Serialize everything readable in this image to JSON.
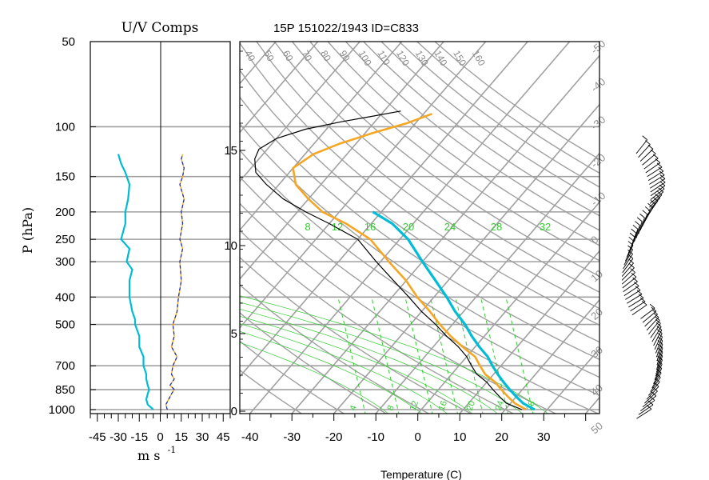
{
  "chart_data": [
    {
      "type": "line",
      "title": "U/V Comps",
      "ylabel": "P (hPa)",
      "xlabel": "m s -1",
      "xlabel_main": "m s",
      "xlabel_exp": "-1",
      "y_scale": "log",
      "ylim": [
        1000,
        50
      ],
      "xlim": [
        -50,
        50
      ],
      "x_ticks": [
        "-45",
        "-30",
        "-15",
        "0",
        "15",
        "30",
        "45"
      ],
      "p_ticks": [
        50,
        100,
        150,
        200,
        250,
        300,
        400,
        500,
        700,
        850,
        1000
      ],
      "series": [
        {
          "color": "#000000",
          "x": [
            -5,
            -9,
            -10,
            -9,
            -8,
            -9,
            -10,
            -10,
            -12,
            -12,
            -15,
            -15,
            -18,
            -18,
            -20,
            -22,
            -22,
            -20,
            -24,
            -22,
            -28,
            -25,
            -25,
            -23,
            -22,
            -25,
            -28,
            -30
          ],
          "p": [
            1000,
            960,
            920,
            880,
            850,
            820,
            780,
            750,
            700,
            650,
            600,
            550,
            500,
            480,
            450,
            400,
            350,
            320,
            300,
            270,
            250,
            220,
            200,
            180,
            160,
            145,
            135,
            125
          ]
        },
        {
          "color": "#00bcd4",
          "x": [
            -5,
            -9,
            -10,
            -9,
            -8,
            -9,
            -10,
            -10,
            -12,
            -12,
            -15,
            -15,
            -18,
            -18,
            -20,
            -22,
            -22,
            -20,
            -24,
            -22,
            -28,
            -25,
            -25,
            -23,
            -22,
            -25,
            -28,
            -30
          ],
          "p": [
            1000,
            960,
            920,
            880,
            850,
            820,
            780,
            750,
            700,
            650,
            600,
            550,
            500,
            480,
            450,
            400,
            350,
            320,
            300,
            270,
            250,
            220,
            200,
            180,
            160,
            145,
            135,
            125
          ]
        },
        {
          "color": "#f5a623",
          "x": [
            5,
            4,
            6,
            8,
            10,
            7,
            10,
            8,
            9,
            12,
            8,
            10,
            9,
            12,
            13,
            15,
            14,
            16,
            14,
            16,
            15,
            17,
            14,
            16,
            17,
            15,
            16
          ],
          "p": [
            1000,
            960,
            920,
            880,
            850,
            820,
            780,
            750,
            700,
            650,
            600,
            550,
            500,
            450,
            400,
            350,
            300,
            270,
            250,
            220,
            200,
            180,
            160,
            150,
            140,
            130,
            125
          ]
        },
        {
          "color": "#2233aa",
          "x": [
            5,
            4,
            6,
            8,
            10,
            7,
            10,
            8,
            9,
            12,
            8,
            10,
            9,
            12,
            13,
            15,
            14,
            16,
            14,
            16,
            15,
            17,
            14,
            16,
            17,
            15,
            16
          ],
          "p": [
            1000,
            960,
            920,
            880,
            850,
            820,
            780,
            750,
            700,
            650,
            600,
            550,
            500,
            450,
            400,
            350,
            300,
            270,
            250,
            220,
            200,
            180,
            160,
            150,
            140,
            130,
            125
          ]
        }
      ]
    },
    {
      "type": "line",
      "title": "15P 151022/1943 ID=C833",
      "xlabel": "Temperature (C)",
      "x_scale": "skew-T",
      "y_scale": "log",
      "ylim_p": [
        1050,
        50
      ],
      "xlim": [
        -45,
        45
      ],
      "x_ticks": [
        "-40",
        "-30",
        "-20",
        "-10",
        "0",
        "10",
        "20",
        "30"
      ],
      "height_ticks_km": [
        "0",
        "5",
        "10",
        "15"
      ],
      "grid": true,
      "isotherm_labels": [
        "-50",
        "-40",
        "-30",
        "-20",
        "-10",
        "0",
        "10",
        "20",
        "30",
        "40",
        "50"
      ],
      "adiabat_labels": [
        "40",
        "50",
        "60",
        "70",
        "80",
        "90",
        "100",
        "110",
        "120",
        "130",
        "140",
        "150",
        "160"
      ],
      "mixing_ratio_labels": [
        "8",
        "12",
        "16",
        "20",
        "24",
        "28",
        "32"
      ],
      "moist_adiabat_labels": [
        "4",
        "8",
        "12",
        "16",
        "20",
        "24",
        "28"
      ],
      "colors": {
        "temperature": "#f5a623",
        "dewpoint": "#000000",
        "parcel": "#00bcd4",
        "grid": "#a0a0a0",
        "mixing_ratio": "#33cc33"
      },
      "series": [
        {
          "color": "#f5a623",
          "T": [
            25,
            21,
            18,
            15,
            12,
            8,
            5,
            2,
            -3,
            -8,
            -13,
            -18,
            -24,
            -30,
            -38,
            -47,
            -56,
            -64,
            -70,
            -76,
            -80,
            -78,
            -74,
            -68,
            -62,
            -58
          ],
          "p": [
            1000,
            950,
            900,
            850,
            800,
            750,
            700,
            650,
            600,
            550,
            500,
            450,
            400,
            350,
            300,
            250,
            220,
            200,
            180,
            160,
            140,
            125,
            115,
            105,
            97,
            90
          ]
        },
        {
          "color": "#000000",
          "T": [
            24,
            19,
            16,
            13,
            10,
            6,
            3,
            0,
            -4,
            -9,
            -14,
            -20,
            -26,
            -33,
            -41,
            -50,
            -60,
            -68,
            -76,
            -83,
            -88,
            -91,
            -92,
            -90,
            -85,
            -78,
            -72,
            -66
          ],
          "p": [
            1000,
            950,
            900,
            850,
            800,
            750,
            700,
            650,
            600,
            550,
            500,
            450,
            400,
            350,
            300,
            250,
            220,
            200,
            180,
            160,
            145,
            130,
            120,
            110,
            102,
            96,
            92,
            88
          ]
        },
        {
          "color": "#00bcd4",
          "T": [
            27,
            23,
            20,
            17,
            14,
            11,
            8,
            5,
            1,
            -3,
            -7,
            -12,
            -17,
            -23,
            -30,
            -38,
            -45,
            -52
          ],
          "p": [
            1000,
            950,
            900,
            850,
            800,
            750,
            700,
            650,
            600,
            550,
            500,
            450,
            400,
            350,
            300,
            250,
            220,
            200
          ]
        }
      ]
    }
  ]
}
